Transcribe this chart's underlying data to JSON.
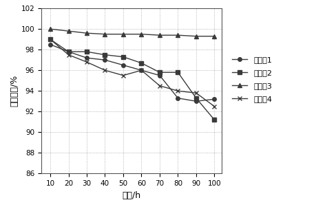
{
  "x": [
    10,
    20,
    30,
    40,
    50,
    60,
    70,
    80,
    90,
    100
  ],
  "series": {
    "s1": [
      98.5,
      97.8,
      97.2,
      97.0,
      96.5,
      96.0,
      95.5,
      93.3,
      93.0,
      93.2
    ],
    "s2": [
      99.0,
      97.8,
      97.8,
      97.5,
      97.3,
      96.7,
      95.8,
      95.8,
      93.3,
      91.2
    ],
    "s3": [
      100.0,
      99.8,
      99.6,
      99.5,
      99.5,
      99.5,
      99.4,
      99.4,
      99.3,
      99.3
    ],
    "s4": [
      99.0,
      97.5,
      96.8,
      96.0,
      95.5,
      96.0,
      94.5,
      94.0,
      93.8,
      92.5
    ]
  },
  "labels": {
    "s1": "实施例1",
    "s2": "实施例2",
    "s3": "实施例3",
    "s4": "实施例4"
  },
  "markers": {
    "s1": "o",
    "s2": "s",
    "s3": "^",
    "s4": "x"
  },
  "ylabel": "抗细菌率/%",
  "xlabel": "时间/h",
  "ylim": [
    86,
    102
  ],
  "yticks": [
    86,
    88,
    90,
    92,
    94,
    96,
    98,
    100,
    102
  ],
  "xticks": [
    10,
    20,
    30,
    40,
    50,
    60,
    70,
    80,
    90,
    100
  ],
  "background_color": "#ffffff"
}
